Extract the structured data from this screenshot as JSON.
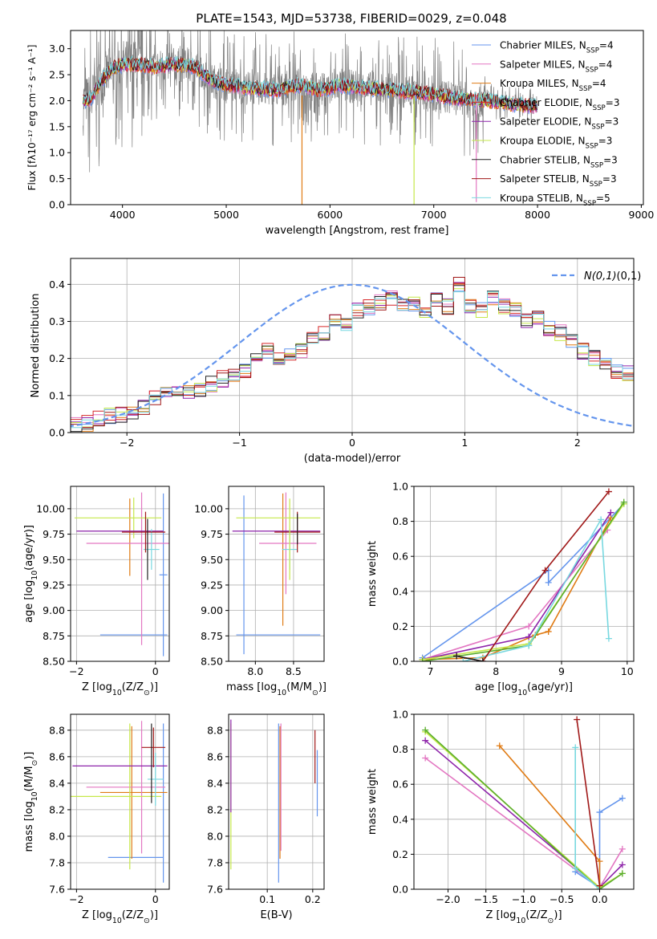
{
  "figure": {
    "title": "PLATE=1543, MJD=53738, FIBERID=0029, z=0.048"
  },
  "colors": {
    "data": "#808080",
    "cornflower": "#6495ed",
    "hotpink": "#e377c2",
    "orange": "#e07b14",
    "red": "#d62728",
    "purple": "#8e24aa",
    "yellowgreen": "#c6e84a",
    "black": "#222222",
    "darkred": "#a01818",
    "turquoise": "#78d8e0",
    "green": "#5aad2c"
  },
  "chart_data": [
    {
      "id": "spectrum",
      "type": "line",
      "title": "PLATE=1543, MJD=53738, FIBERID=0029, z=0.048",
      "xlabel": "wavelength [Angstrom, rest frame]",
      "ylabel": "Flux [fλ10⁻¹⁷ erg cm⁻² s⁻¹ A⁻¹]",
      "xlim": [
        3500,
        9020
      ],
      "ylim": [
        0,
        3.35
      ],
      "xticks": [
        4000,
        5000,
        6000,
        7000,
        8000,
        9000
      ],
      "yticks": [
        0.0,
        0.5,
        1.0,
        1.5,
        2.0,
        2.5,
        3.0
      ],
      "continuum": [
        [
          3640,
          2.0
        ],
        [
          3700,
          2.05
        ],
        [
          3800,
          2.4
        ],
        [
          3900,
          2.6
        ],
        [
          4000,
          2.7
        ],
        [
          4100,
          2.7
        ],
        [
          4300,
          2.65
        ],
        [
          4500,
          2.7
        ],
        [
          4700,
          2.65
        ],
        [
          4850,
          2.4
        ],
        [
          5000,
          2.3
        ],
        [
          5200,
          2.25
        ],
        [
          5500,
          2.2
        ],
        [
          5700,
          2.3
        ],
        [
          5900,
          2.2
        ],
        [
          6100,
          2.3
        ],
        [
          6300,
          2.25
        ],
        [
          6600,
          2.2
        ],
        [
          6900,
          2.15
        ],
        [
          7200,
          2.05
        ],
        [
          7500,
          2.0
        ],
        [
          7700,
          1.95
        ],
        [
          7900,
          1.9
        ],
        [
          8000,
          1.9
        ]
      ],
      "dips": [
        [
          5730,
          0.0
        ],
        [
          6810,
          0.0
        ],
        [
          7410,
          0.05
        ]
      ],
      "series": [
        {
          "name": "Chabrier MILES, N$_{SSP}$=4",
          "color_key": "cornflower"
        },
        {
          "name": "Salpeter MILES, N$_{SSP}$=4",
          "color_key": "hotpink"
        },
        {
          "name": "Kroupa MILES, N$_{SSP}$=4",
          "color_key": "orange"
        },
        {
          "name": "Chabrier ELODIE, N$_{SSP}$=3",
          "color_key": "red"
        },
        {
          "name": "Salpeter ELODIE, N$_{SSP}$=3",
          "color_key": "purple"
        },
        {
          "name": "Kroupa ELODIE, N$_{SSP}$=3",
          "color_key": "yellowgreen"
        },
        {
          "name": "Chabrier STELIB, N$_{SSP}$=3",
          "color_key": "black"
        },
        {
          "name": "Salpeter STELIB, N$_{SSP}$=3",
          "color_key": "darkred"
        },
        {
          "name": "Kroupa STELIB, N$_{SSP}$=5",
          "color_key": "turquoise"
        }
      ],
      "legend": "top-right",
      "grid": false
    },
    {
      "id": "residuals",
      "type": "line",
      "xlabel": "(data-model)/error",
      "ylabel": "Normed distribution",
      "xlim": [
        -2.5,
        2.5
      ],
      "ylim": [
        0,
        0.47
      ],
      "xticks": [
        -2,
        -1,
        0,
        1,
        2
      ],
      "yticks": [
        0.0,
        0.1,
        0.2,
        0.3,
        0.4
      ],
      "bin_width": 0.1,
      "hist_base": [
        0.02,
        0.025,
        0.04,
        0.045,
        0.05,
        0.055,
        0.065,
        0.09,
        0.1,
        0.11,
        0.115,
        0.12,
        0.13,
        0.145,
        0.15,
        0.17,
        0.2,
        0.22,
        0.2,
        0.215,
        0.22,
        0.26,
        0.27,
        0.3,
        0.29,
        0.33,
        0.34,
        0.35,
        0.36,
        0.34,
        0.35,
        0.33,
        0.36,
        0.34,
        0.4,
        0.34,
        0.33,
        0.36,
        0.34,
        0.335,
        0.3,
        0.31,
        0.28,
        0.27,
        0.245,
        0.22,
        0.2,
        0.19,
        0.16,
        0.16,
        0.14,
        0.13,
        0.11,
        0.1,
        0.085,
        0.075,
        0.07,
        0.065,
        0.05,
        0.045
      ],
      "hist_bin_start": -2.5,
      "normal_curve": {
        "label": "$\\mathcal{N}(0,1)$",
        "color_key": "cornflower",
        "mean": 0,
        "sigma": 1
      },
      "legend": "top-right",
      "grid": true
    },
    {
      "id": "age_vs_Z",
      "type": "scatter",
      "xlabel": "Z [log$_{10}$(Z/Z$_\\odot$)]",
      "ylabel": "age  [log$_{10}$(age/yr)]",
      "xlim": [
        -2.15,
        0.35
      ],
      "ylim": [
        8.5,
        10.22
      ],
      "xticks": [
        -2,
        0
      ],
      "yticks": [
        8.5,
        8.75,
        9.0,
        9.25,
        9.5,
        9.75,
        10.0
      ],
      "points": [
        {
          "color_key": "cornflower",
          "x": 0.2,
          "y": 9.35,
          "xerr": [
            0.1,
            0.1
          ],
          "yerr": [
            0.8,
            0.8
          ]
        },
        {
          "color_key": "cornflower",
          "x": -0.5,
          "y": 8.76,
          "xerr": [
            0.9,
            0.8
          ],
          "yerr": [
            0.0,
            0.0
          ]
        },
        {
          "color_key": "orange",
          "x": -0.65,
          "y": 9.72,
          "xerr": [
            0.0,
            0.0
          ],
          "yerr": [
            0.38,
            0.38
          ]
        },
        {
          "color_key": "hotpink",
          "x": -0.35,
          "y": 9.66,
          "xerr": [
            1.4,
            1.0
          ],
          "yerr": [
            1.0,
            0.5
          ]
        },
        {
          "color_key": "yellowgreen",
          "x": -0.55,
          "y": 9.91,
          "xerr": [
            1.5,
            0.7
          ],
          "yerr": [
            0.2,
            0.2
          ]
        },
        {
          "color_key": "purple",
          "x": -1.0,
          "y": 9.78,
          "xerr": [
            1.0,
            1.2
          ],
          "yerr": [
            0.0,
            0.0
          ]
        },
        {
          "color_key": "turquoise",
          "x": -0.1,
          "y": 9.6,
          "xerr": [
            0.2,
            0.2
          ],
          "yerr": [
            0.2,
            0.2
          ]
        },
        {
          "color_key": "darkred",
          "x": -0.25,
          "y": 9.77,
          "xerr": [
            0.6,
            0.5
          ],
          "yerr": [
            0.2,
            0.2
          ]
        },
        {
          "color_key": "black",
          "x": -0.2,
          "y": 9.6,
          "xerr": [
            0.0,
            0.0
          ],
          "yerr": [
            0.3,
            0.3
          ]
        }
      ],
      "grid": true
    },
    {
      "id": "age_vs_mass",
      "type": "scatter",
      "xlabel": "mass [log$_{10}$(M/M$_\\odot$)]",
      "ylabel": "",
      "xlim": [
        7.65,
        8.9
      ],
      "ylim": [
        8.5,
        10.22
      ],
      "xticks": [
        8.0,
        8.5
      ],
      "yticks": [
        8.5,
        8.75,
        9.0,
        9.25,
        9.5,
        9.75,
        10.0
      ],
      "points": [
        {
          "color_key": "cornflower",
          "x": 7.85,
          "y": 9.35,
          "xerr": [
            0.0,
            0.0
          ],
          "yerr": [
            0.78,
            0.78
          ]
        },
        {
          "color_key": "cornflower",
          "x": 8.3,
          "y": 8.76,
          "xerr": [
            0.55,
            0.55
          ],
          "yerr": [
            0.0,
            0.0
          ]
        },
        {
          "color_key": "orange",
          "x": 8.36,
          "y": 9.5,
          "xerr": [
            0.0,
            0.0
          ],
          "yerr": [
            0.65,
            0.65
          ]
        },
        {
          "color_key": "hotpink",
          "x": 8.4,
          "y": 9.66,
          "xerr": [
            0.35,
            0.4
          ],
          "yerr": [
            0.5,
            0.5
          ]
        },
        {
          "color_key": "yellowgreen",
          "x": 8.3,
          "y": 9.91,
          "xerr": [
            0.55,
            0.55
          ],
          "yerr": [
            0.0,
            0.0
          ]
        },
        {
          "color_key": "purple",
          "x": 8.3,
          "y": 9.78,
          "xerr": [
            0.6,
            0.55
          ],
          "yerr": [
            0.0,
            0.0
          ]
        },
        {
          "color_key": "turquoise",
          "x": 8.45,
          "y": 9.6,
          "xerr": [
            0.1,
            0.1
          ],
          "yerr": [
            0.2,
            0.2
          ]
        },
        {
          "color_key": "darkred",
          "x": 8.55,
          "y": 9.77,
          "xerr": [
            0.3,
            0.3
          ],
          "yerr": [
            0.2,
            0.2
          ]
        },
        {
          "color_key": "black",
          "x": 8.55,
          "y": 9.8,
          "xerr": [
            0.0,
            0.0
          ],
          "yerr": [
            0.15,
            0.15
          ]
        },
        {
          "color_key": "yellowgreen",
          "x": 8.45,
          "y": 9.7,
          "xerr": [
            0.0,
            0.0
          ],
          "yerr": [
            0.4,
            0.4
          ]
        }
      ],
      "grid": true
    },
    {
      "id": "weight_vs_age",
      "type": "line",
      "xlabel": "age  [log$_{10}$(age/yr)]",
      "ylabel": "mass weight",
      "xlim": [
        6.75,
        10.1
      ],
      "ylim": [
        0,
        1.0
      ],
      "xticks": [
        7,
        8,
        9,
        10
      ],
      "yticks": [
        0.0,
        0.2,
        0.4,
        0.6,
        0.8,
        1.0
      ],
      "series": [
        {
          "color_key": "cornflower",
          "x": [
            6.88,
            8.8,
            8.8,
            9.95
          ],
          "y": [
            0.02,
            0.52,
            0.45,
            0.9
          ]
        },
        {
          "color_key": "hotpink",
          "x": [
            6.88,
            8.5,
            9.7
          ],
          "y": [
            0.01,
            0.2,
            0.75
          ]
        },
        {
          "color_key": "orange",
          "x": [
            6.88,
            7.8,
            8.6,
            8.8,
            9.75
          ],
          "y": [
            0.01,
            0.02,
            0.15,
            0.17,
            0.82
          ]
        },
        {
          "color_key": "purple",
          "x": [
            6.88,
            8.5,
            9.75
          ],
          "y": [
            0.01,
            0.14,
            0.85
          ]
        },
        {
          "color_key": "yellowgreen",
          "x": [
            6.88,
            8.5,
            9.95
          ],
          "y": [
            0.01,
            0.1,
            0.9
          ]
        },
        {
          "color_key": "green",
          "x": [
            6.88,
            8.5,
            9.95
          ],
          "y": [
            0.0,
            0.09,
            0.91
          ]
        },
        {
          "color_key": "turquoise",
          "x": [
            7.5,
            8.5,
            9.6,
            9.72
          ],
          "y": [
            0.0,
            0.09,
            0.81,
            0.13
          ]
        },
        {
          "color_key": "darkred",
          "x": [
            7.4,
            7.8,
            8.75,
            9.72
          ],
          "y": [
            0.03,
            0.0,
            0.52,
            0.97
          ]
        },
        {
          "color_key": "black",
          "x": [
            7.4,
            7.8
          ],
          "y": [
            0.03,
            0.0
          ]
        }
      ],
      "grid": true
    },
    {
      "id": "mass_vs_Z",
      "type": "scatter",
      "xlabel": "Z [log$_{10}$(Z/Z$_\\odot$)]",
      "ylabel": "mass [log$_{10}$(M/M$_\\odot$)]",
      "xlim": [
        -2.15,
        0.35
      ],
      "ylim": [
        7.6,
        8.92
      ],
      "xticks": [
        -2,
        0
      ],
      "yticks": [
        7.6,
        7.8,
        8.0,
        8.2,
        8.4,
        8.6,
        8.8
      ],
      "points": [
        {
          "color_key": "cornflower",
          "x": 0.2,
          "y": 8.25,
          "xerr": [
            0.0,
            0.0
          ],
          "yerr": [
            0.6,
            0.6
          ]
        },
        {
          "color_key": "cornflower",
          "x": -0.5,
          "y": 7.84,
          "xerr": [
            0.7,
            0.7
          ],
          "yerr": [
            0.0,
            0.0
          ]
        },
        {
          "color_key": "orange",
          "x": -0.6,
          "y": 8.33,
          "xerr": [
            0.8,
            0.9
          ],
          "yerr": [
            0.5,
            0.5
          ]
        },
        {
          "color_key": "hotpink",
          "x": -0.35,
          "y": 8.37,
          "xerr": [
            1.4,
            0.6
          ],
          "yerr": [
            0.5,
            0.5
          ]
        },
        {
          "color_key": "yellowgreen",
          "x": -0.65,
          "y": 8.3,
          "xerr": [
            1.5,
            0.8
          ],
          "yerr": [
            0.55,
            0.55
          ]
        },
        {
          "color_key": "purple",
          "x": -1.0,
          "y": 8.53,
          "xerr": [
            1.1,
            1.3
          ],
          "yerr": [
            0.0,
            0.0
          ]
        },
        {
          "color_key": "turquoise",
          "x": 0.0,
          "y": 8.43,
          "xerr": [
            0.2,
            0.2
          ],
          "yerr": [
            0.2,
            0.2
          ]
        },
        {
          "color_key": "darkred",
          "x": -0.05,
          "y": 8.67,
          "xerr": [
            0.3,
            0.3
          ],
          "yerr": [
            0.15,
            0.15
          ]
        },
        {
          "color_key": "black",
          "x": -0.1,
          "y": 8.55,
          "xerr": [
            0.0,
            0.0
          ],
          "yerr": [
            0.3,
            0.3
          ]
        }
      ],
      "grid": true
    },
    {
      "id": "mass_vs_EBV",
      "type": "scatter",
      "xlabel": "E(B-V)",
      "ylabel": "",
      "xlim": [
        0.015,
        0.225
      ],
      "ylim": [
        7.6,
        8.92
      ],
      "xticks": [
        0.1,
        0.2
      ],
      "yticks": [
        7.6,
        7.8,
        8.0,
        8.2,
        8.4,
        8.6,
        8.8
      ],
      "points": [
        {
          "color_key": "yellowgreen",
          "x": 0.02,
          "y": 8.3,
          "xerr": [
            0.0,
            0.0
          ],
          "yerr": [
            0.55,
            0.55
          ]
        },
        {
          "color_key": "purple",
          "x": 0.02,
          "y": 8.53,
          "xerr": [
            0.0,
            0.0
          ],
          "yerr": [
            0.35,
            0.35
          ]
        },
        {
          "color_key": "cornflower",
          "x": 0.125,
          "y": 8.25,
          "xerr": [
            0.0,
            0.0
          ],
          "yerr": [
            0.6,
            0.6
          ]
        },
        {
          "color_key": "orange",
          "x": 0.128,
          "y": 8.33,
          "xerr": [
            0.0,
            0.0
          ],
          "yerr": [
            0.5,
            0.5
          ]
        },
        {
          "color_key": "hotpink",
          "x": 0.13,
          "y": 8.37,
          "xerr": [
            0.0,
            0.0
          ],
          "yerr": [
            0.48,
            0.48
          ]
        },
        {
          "color_key": "darkred",
          "x": 0.205,
          "y": 8.6,
          "xerr": [
            0.0,
            0.0
          ],
          "yerr": [
            0.2,
            0.2
          ]
        },
        {
          "color_key": "cornflower",
          "x": 0.21,
          "y": 8.4,
          "xerr": [
            0.0,
            0.0
          ],
          "yerr": [
            0.25,
            0.25
          ]
        }
      ],
      "grid": true
    },
    {
      "id": "weight_vs_Z",
      "type": "line",
      "xlabel": "Z [log$_{10}$(Z/Z$_\\odot$)]",
      "ylabel": "mass weight",
      "xlim": [
        -2.45,
        0.45
      ],
      "ylim": [
        0,
        1.0
      ],
      "xticks": [
        -2.0,
        -1.5,
        -1.0,
        -0.5,
        0.0
      ],
      "yticks": [
        0.0,
        0.2,
        0.4,
        0.6,
        0.8,
        1.0
      ],
      "series": [
        {
          "color_key": "cornflower",
          "x": [
            -0.32,
            0.0,
            0.0,
            0.0,
            0.3
          ],
          "y": [
            0.1,
            0.01,
            0.02,
            0.44,
            0.52
          ]
        },
        {
          "color_key": "hotpink",
          "x": [
            -2.3,
            0.0,
            0.3
          ],
          "y": [
            0.75,
            0.01,
            0.23
          ]
        },
        {
          "color_key": "orange",
          "x": [
            -1.32,
            0.0,
            0.0
          ],
          "y": [
            0.82,
            0.16,
            0.01
          ]
        },
        {
          "color_key": "purple",
          "x": [
            -2.3,
            0.0,
            0.3
          ],
          "y": [
            0.85,
            0.01,
            0.14
          ]
        },
        {
          "color_key": "yellowgreen",
          "x": [
            -2.3,
            0.0,
            0.3
          ],
          "y": [
            0.9,
            0.01,
            0.09
          ]
        },
        {
          "color_key": "green",
          "x": [
            -2.3,
            0.0,
            0.3
          ],
          "y": [
            0.91,
            0.0,
            0.09
          ]
        },
        {
          "color_key": "turquoise",
          "x": [
            -0.32,
            -0.32,
            0.0
          ],
          "y": [
            0.81,
            0.12,
            0.0
          ]
        },
        {
          "color_key": "darkred",
          "x": [
            -0.3,
            0.0
          ],
          "y": [
            0.97,
            0.02
          ]
        }
      ],
      "grid": true
    }
  ]
}
